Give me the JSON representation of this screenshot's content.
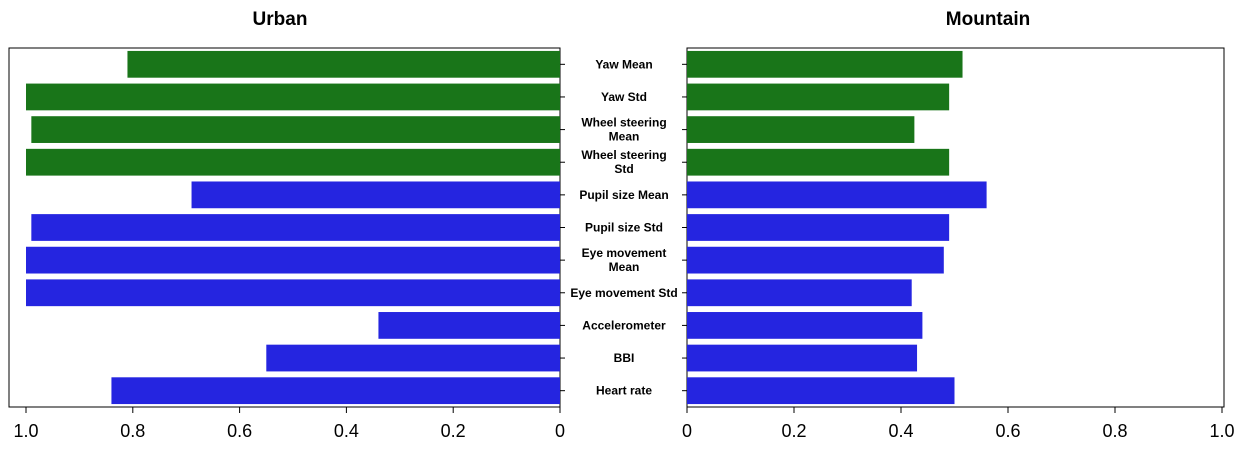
{
  "chart_data": {
    "type": "bar",
    "orientation": "horizontal",
    "categories": [
      "Yaw Mean",
      "Yaw Std",
      "Wheel steering Mean",
      "Wheel steering Std",
      "Pupil size Mean",
      "Pupil size Std",
      "Eye movement Mean",
      "Eye movement Std",
      "Accelerometer",
      "BBI",
      "Heart rate"
    ],
    "category_label_lines": [
      [
        "Yaw Mean"
      ],
      [
        "Yaw Std"
      ],
      [
        "Wheel steering",
        "Mean"
      ],
      [
        "Wheel steering",
        "Std"
      ],
      [
        "Pupil size Mean"
      ],
      [
        "Pupil size Std"
      ],
      [
        "Eye movement",
        "Mean"
      ],
      [
        "Eye movement  Std"
      ],
      [
        "Accelerometer"
      ],
      [
        "BBI"
      ],
      [
        "Heart rate"
      ]
    ],
    "bar_colors": [
      "#197519",
      "#197519",
      "#197519",
      "#197519",
      "#2525e0",
      "#2525e0",
      "#2525e0",
      "#2525e0",
      "#2525e0",
      "#2525e0",
      "#2525e0"
    ],
    "panels": [
      {
        "title": "Urban",
        "x_reversed": true,
        "xlim": [
          0,
          1.0
        ],
        "xticks": [
          1.0,
          0.8,
          0.6,
          0.4,
          0.2,
          0
        ],
        "xtick_labels": [
          "1.0",
          "0.8",
          "0.6",
          "0.4",
          "0.2",
          "0"
        ],
        "values": [
          0.81,
          1.0,
          0.99,
          1.0,
          0.69,
          0.99,
          1.0,
          1.0,
          0.34,
          0.55,
          0.84
        ]
      },
      {
        "title": "Mountain",
        "x_reversed": false,
        "xlim": [
          0,
          1.0
        ],
        "xticks": [
          0,
          0.2,
          0.4,
          0.6,
          0.8,
          1.0
        ],
        "xtick_labels": [
          "0",
          "0.2",
          "0.4",
          "0.6",
          "0.8",
          "1.0"
        ],
        "values": [
          0.515,
          0.49,
          0.425,
          0.49,
          0.56,
          0.49,
          0.48,
          0.42,
          0.44,
          0.43,
          0.5
        ]
      }
    ],
    "grid": false,
    "legend": "none"
  }
}
